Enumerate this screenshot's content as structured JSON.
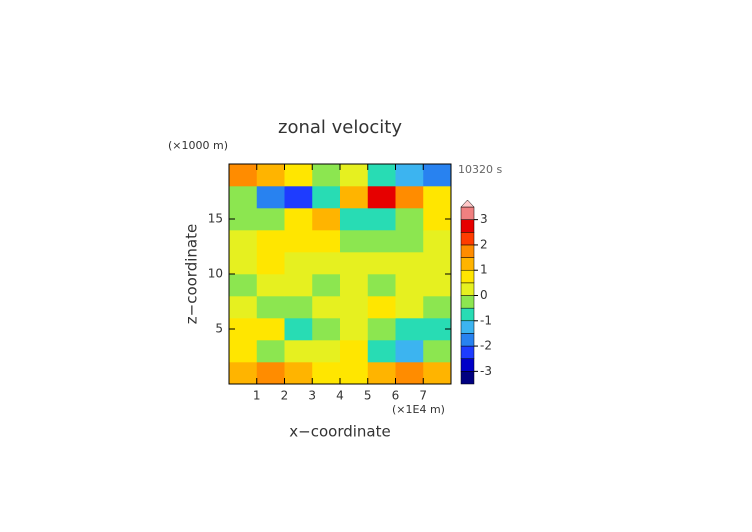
{
  "chart_data": {
    "type": "heatmap",
    "title": "zonal velocity",
    "y_unit_label": "(×1000 m)",
    "time_label": "10320 s",
    "xlabel": "x−coordinate",
    "ylabel": "z−coordinate",
    "x_unit_label": "(×1E4 m)",
    "xlim": [
      0,
      8
    ],
    "ylim": [
      0,
      20
    ],
    "xticks": [
      1,
      2,
      3,
      4,
      5,
      6,
      7
    ],
    "yticks": [
      5,
      10,
      15
    ],
    "x": [
      0.5,
      1.5,
      2.5,
      3.5,
      4.5,
      5.5,
      6.5,
      7.5
    ],
    "z": [
      1,
      3,
      5,
      7,
      9,
      11,
      13,
      15,
      17,
      19
    ],
    "values": [
      [
        1.2,
        1.5,
        1.2,
        0.8,
        0.8,
        1.2,
        1.5,
        1.2
      ],
      [
        0.5,
        -0.5,
        0.3,
        0.2,
        0.5,
        -0.8,
        -1.2,
        -0.5
      ],
      [
        0.6,
        0.8,
        -0.6,
        -0.3,
        0.2,
        -0.5,
        -1.0,
        -0.8
      ],
      [
        0.3,
        -0.3,
        -0.5,
        0.2,
        0.3,
        0.5,
        0.2,
        -0.3
      ],
      [
        -0.3,
        0.3,
        0.2,
        -0.4,
        0.3,
        -0.2,
        0.2,
        0.3
      ],
      [
        0.3,
        0.5,
        0.2,
        0.3,
        0.4,
        0.2,
        0.3,
        0.2
      ],
      [
        0.2,
        0.5,
        0.8,
        0.6,
        -0.3,
        -0.5,
        -0.3,
        0.2
      ],
      [
        -0.5,
        -0.3,
        0.6,
        1.0,
        -1.0,
        -0.8,
        -0.3,
        0.5
      ],
      [
        -0.5,
        -1.8,
        -2.5,
        -1.0,
        1.0,
        2.5,
        1.8,
        0.5
      ],
      [
        1.5,
        1.2,
        0.6,
        -0.2,
        0.2,
        -0.8,
        -1.5,
        -2.0
      ]
    ],
    "levels": [
      -3.5,
      -3,
      -2.5,
      -2,
      -1.5,
      -1,
      -0.5,
      0,
      0.5,
      1,
      1.5,
      2,
      2.5,
      3,
      3.5
    ],
    "colors": [
      "#000080",
      "#0000c8",
      "#1e3cff",
      "#2882f0",
      "#3cb4f0",
      "#28dcb4",
      "#8ce650",
      "#e6f020",
      "#ffe600",
      "#ffb400",
      "#ff8c00",
      "#ff3c00",
      "#e60000",
      "#f08080"
    ],
    "overflow_color": "#ffc8c8",
    "colorbar_ticks": [
      -3,
      -2,
      -1,
      0,
      1,
      2,
      3
    ]
  }
}
